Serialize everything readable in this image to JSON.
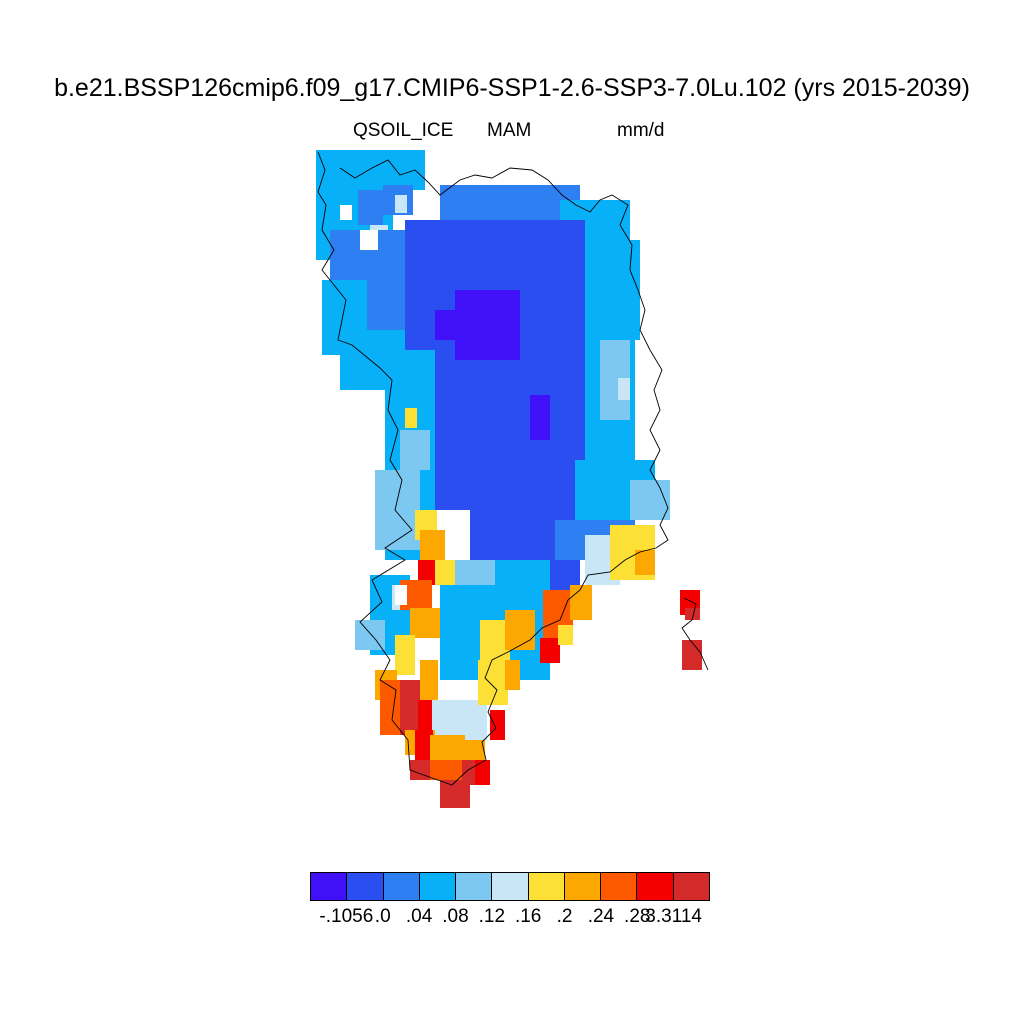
{
  "title": "b.e21.BSSP126cmip6.f09_g17.CMIP6-SSP1-2.6-SSP3-7.0Lu.102 (yrs 2015-2039)",
  "variable": "QSOIL_ICE",
  "season": "MAM",
  "units": "mm/d",
  "colorbar": {
    "colors": [
      "#3f10f8",
      "#2a4ef0",
      "#2e7ff2",
      "#08b0f8",
      "#7cc8f0",
      "#c8e6f6",
      "#fde036",
      "#fda800",
      "#fd5a00",
      "#f40000",
      "#d42a2a"
    ],
    "labels": [
      "-.1056",
      ".0",
      ".04",
      ".08",
      ".12",
      ".16",
      ".2",
      ".24",
      ".28",
      "3.3114"
    ]
  },
  "chart_data": {
    "type": "heatmap",
    "title": "b.e21.BSSP126cmip6.f09_g17.CMIP6-SSP1-2.6-SSP3-7.0Lu.102 (yrs 2015-2039)",
    "variable": "QSOIL_ICE",
    "season": "MAM",
    "units": "mm/d",
    "region": "Greenland",
    "levels": [
      -0.1056,
      0.0,
      0.04,
      0.08,
      0.12,
      0.16,
      0.2,
      0.24,
      0.28,
      3.3114
    ],
    "legend_position": "bottom",
    "summary": {
      "interior_ice_sheet": "-0.1056 to 0.04",
      "northwest_and_east_margins": "0.04 to 0.16",
      "southwest_and_southeast_coast": "0.16 to 3.3114"
    }
  }
}
